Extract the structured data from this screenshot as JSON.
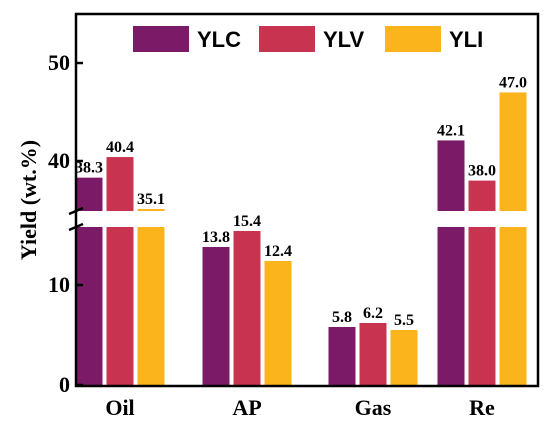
{
  "chart_data": {
    "type": "bar",
    "categories": [
      "Oil",
      "AP",
      "Gas",
      "Re"
    ],
    "series": [
      {
        "name": "YLC",
        "values": [
          38.3,
          13.8,
          5.8,
          42.1
        ],
        "color": "#7b1a66"
      },
      {
        "name": "YLV",
        "values": [
          40.4,
          15.4,
          6.2,
          38.0
        ],
        "color": "#c8344f"
      },
      {
        "name": "YLI",
        "values": [
          35.1,
          12.4,
          5.5,
          47.0
        ],
        "color": "#fbb41c"
      }
    ],
    "data_labels": [
      [
        "38.3",
        "40.4",
        "35.1"
      ],
      [
        "13.8",
        "15.4",
        "12.4"
      ],
      [
        "5.8",
        "6.2",
        "5.5"
      ],
      [
        "42.1",
        "38.0",
        "47.0"
      ]
    ],
    "ylabel": "Yield (wt.%)",
    "y_axis": {
      "broken": true,
      "lower_range": [
        0,
        18
      ],
      "upper_range": [
        32,
        55
      ],
      "lower_ticks": [
        {
          "value": 0,
          "label": "0"
        },
        {
          "value": 10,
          "label": "10"
        }
      ],
      "upper_ticks": [
        {
          "value": 40,
          "label": "40"
        },
        {
          "value": 50,
          "label": "50"
        }
      ]
    },
    "legend_position": "top",
    "grid": false
  }
}
